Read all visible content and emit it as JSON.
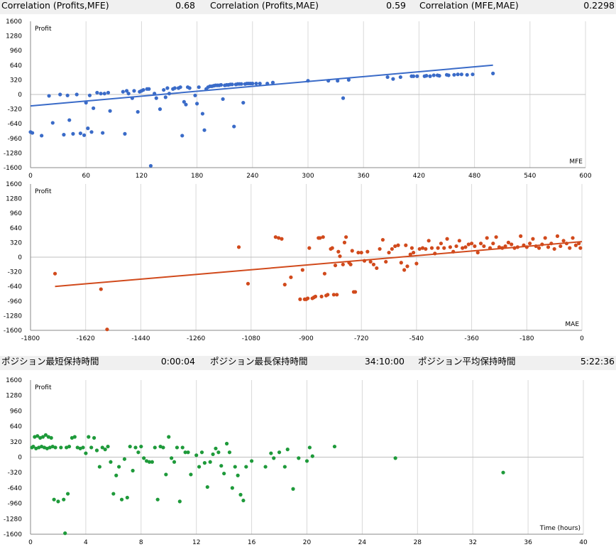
{
  "stats_top": [
    {
      "label": "Correlation (Profits,MFE)",
      "value": "0.68"
    },
    {
      "label": "Correlation (Profits,MAE)",
      "value": "0.59"
    },
    {
      "label": "Correlation (MFE,MAE)",
      "value": "0.2298"
    }
  ],
  "stats_mid": [
    {
      "label": "ポジション最短保持時間",
      "value": "0:00:04"
    },
    {
      "label": "ポジション最長保持時間",
      "value": "34:10:00"
    },
    {
      "label": "ポジション平均保持時間",
      "value": "5:22:36"
    }
  ],
  "colors": {
    "mfe": "#3a6bc8",
    "mae": "#d14a1c",
    "time": "#1e9a3a",
    "grid": "#d9d9d9",
    "bar": "#f0f0f0"
  },
  "chart_data": [
    {
      "type": "scatter",
      "ylabel": "Profit",
      "xlabel": "MFE",
      "xlim": [
        0,
        600
      ],
      "ylim": [
        -1600,
        1600
      ],
      "x_ticks": [
        0,
        60,
        120,
        180,
        240,
        300,
        360,
        420,
        480,
        540,
        600
      ],
      "y_ticks": [
        1600,
        1280,
        960,
        640,
        320,
        0,
        -320,
        -640,
        -960,
        -1280,
        -1600
      ],
      "trendline": [
        [
          0,
          -250
        ],
        [
          500,
          640
        ]
      ],
      "points": [
        [
          0,
          -820
        ],
        [
          2,
          -840
        ],
        [
          12,
          -900
        ],
        [
          20,
          -30
        ],
        [
          24,
          -620
        ],
        [
          32,
          0
        ],
        [
          36,
          -880
        ],
        [
          40,
          -20
        ],
        [
          42,
          -560
        ],
        [
          46,
          -860
        ],
        [
          50,
          0
        ],
        [
          54,
          -850
        ],
        [
          58,
          -890
        ],
        [
          60,
          -180
        ],
        [
          62,
          -740
        ],
        [
          64,
          -20
        ],
        [
          66,
          -820
        ],
        [
          68,
          -300
        ],
        [
          72,
          40
        ],
        [
          76,
          20
        ],
        [
          78,
          -840
        ],
        [
          80,
          20
        ],
        [
          84,
          40
        ],
        [
          86,
          -360
        ],
        [
          100,
          60
        ],
        [
          102,
          -860
        ],
        [
          104,
          80
        ],
        [
          106,
          20
        ],
        [
          110,
          -80
        ],
        [
          112,
          80
        ],
        [
          116,
          -380
        ],
        [
          118,
          60
        ],
        [
          120,
          80
        ],
        [
          122,
          100
        ],
        [
          126,
          120
        ],
        [
          128,
          120
        ],
        [
          130,
          -1560
        ],
        [
          134,
          20
        ],
        [
          136,
          -80
        ],
        [
          140,
          -320
        ],
        [
          144,
          100
        ],
        [
          146,
          -60
        ],
        [
          148,
          140
        ],
        [
          150,
          20
        ],
        [
          154,
          120
        ],
        [
          156,
          140
        ],
        [
          160,
          140
        ],
        [
          162,
          160
        ],
        [
          164,
          -900
        ],
        [
          166,
          -160
        ],
        [
          168,
          -220
        ],
        [
          170,
          160
        ],
        [
          172,
          140
        ],
        [
          178,
          -20
        ],
        [
          180,
          -200
        ],
        [
          182,
          160
        ],
        [
          186,
          -420
        ],
        [
          188,
          -780
        ],
        [
          190,
          120
        ],
        [
          192,
          160
        ],
        [
          194,
          180
        ],
        [
          196,
          180
        ],
        [
          198,
          190
        ],
        [
          200,
          200
        ],
        [
          202,
          200
        ],
        [
          204,
          200
        ],
        [
          206,
          210
        ],
        [
          208,
          -100
        ],
        [
          210,
          200
        ],
        [
          212,
          210
        ],
        [
          214,
          210
        ],
        [
          216,
          220
        ],
        [
          218,
          220
        ],
        [
          220,
          -700
        ],
        [
          222,
          220
        ],
        [
          224,
          230
        ],
        [
          226,
          230
        ],
        [
          228,
          230
        ],
        [
          230,
          -180
        ],
        [
          232,
          230
        ],
        [
          234,
          240
        ],
        [
          236,
          240
        ],
        [
          238,
          240
        ],
        [
          240,
          240
        ],
        [
          244,
          240
        ],
        [
          248,
          240
        ],
        [
          256,
          240
        ],
        [
          262,
          260
        ],
        [
          300,
          300
        ],
        [
          322,
          300
        ],
        [
          332,
          300
        ],
        [
          338,
          -80
        ],
        [
          344,
          320
        ],
        [
          386,
          380
        ],
        [
          392,
          340
        ],
        [
          400,
          380
        ],
        [
          412,
          400
        ],
        [
          414,
          400
        ],
        [
          418,
          400
        ],
        [
          426,
          400
        ],
        [
          428,
          410
        ],
        [
          432,
          400
        ],
        [
          436,
          420
        ],
        [
          440,
          420
        ],
        [
          442,
          410
        ],
        [
          450,
          430
        ],
        [
          452,
          420
        ],
        [
          458,
          430
        ],
        [
          462,
          440
        ],
        [
          466,
          440
        ],
        [
          472,
          430
        ],
        [
          478,
          440
        ],
        [
          500,
          460
        ]
      ]
    },
    {
      "type": "scatter",
      "ylabel": "Profit",
      "xlabel": "MAE",
      "xlim": [
        -1800,
        0
      ],
      "ylim": [
        -1600,
        1600
      ],
      "x_ticks": [
        -1800,
        -1620,
        -1440,
        -1260,
        -1080,
        -900,
        -720,
        -540,
        -360,
        -180,
        0
      ],
      "y_ticks": [
        1600,
        1280,
        960,
        640,
        320,
        0,
        -320,
        -640,
        -960,
        -1280,
        -1600
      ],
      "trendline": [
        [
          -1720,
          -640
        ],
        [
          0,
          340
        ]
      ],
      "points": [
        [
          -1720,
          -360
        ],
        [
          -1570,
          -700
        ],
        [
          -1550,
          -1580
        ],
        [
          -1120,
          220
        ],
        [
          -1090,
          -580
        ],
        [
          -1000,
          440
        ],
        [
          -990,
          420
        ],
        [
          -980,
          400
        ],
        [
          -970,
          -600
        ],
        [
          -950,
          -440
        ],
        [
          -920,
          -920
        ],
        [
          -912,
          -280
        ],
        [
          -905,
          -920
        ],
        [
          -900,
          -920
        ],
        [
          -895,
          -900
        ],
        [
          -890,
          200
        ],
        [
          -880,
          -900
        ],
        [
          -875,
          -880
        ],
        [
          -870,
          -860
        ],
        [
          -860,
          420
        ],
        [
          -855,
          420
        ],
        [
          -850,
          -860
        ],
        [
          -845,
          440
        ],
        [
          -840,
          -360
        ],
        [
          -835,
          -840
        ],
        [
          -830,
          -820
        ],
        [
          -820,
          180
        ],
        [
          -815,
          200
        ],
        [
          -810,
          -820
        ],
        [
          -805,
          -180
        ],
        [
          -800,
          -820
        ],
        [
          -795,
          120
        ],
        [
          -790,
          20
        ],
        [
          -780,
          -160
        ],
        [
          -775,
          320
        ],
        [
          -770,
          440
        ],
        [
          -760,
          -120
        ],
        [
          -755,
          -160
        ],
        [
          -750,
          140
        ],
        [
          -745,
          -760
        ],
        [
          -740,
          -760
        ],
        [
          -730,
          100
        ],
        [
          -720,
          100
        ],
        [
          -710,
          -80
        ],
        [
          -700,
          120
        ],
        [
          -690,
          -100
        ],
        [
          -680,
          -160
        ],
        [
          -670,
          -240
        ],
        [
          -660,
          180
        ],
        [
          -650,
          380
        ],
        [
          -640,
          -100
        ],
        [
          -630,
          100
        ],
        [
          -620,
          180
        ],
        [
          -610,
          240
        ],
        [
          -600,
          260
        ],
        [
          -590,
          -120
        ],
        [
          -580,
          -280
        ],
        [
          -575,
          260
        ],
        [
          -570,
          -200
        ],
        [
          -560,
          60
        ],
        [
          -555,
          200
        ],
        [
          -550,
          100
        ],
        [
          -540,
          -140
        ],
        [
          -530,
          180
        ],
        [
          -520,
          200
        ],
        [
          -510,
          180
        ],
        [
          -500,
          360
        ],
        [
          -490,
          200
        ],
        [
          -480,
          80
        ],
        [
          -470,
          200
        ],
        [
          -460,
          300
        ],
        [
          -450,
          200
        ],
        [
          -440,
          400
        ],
        [
          -430,
          220
        ],
        [
          -420,
          120
        ],
        [
          -410,
          240
        ],
        [
          -400,
          360
        ],
        [
          -390,
          200
        ],
        [
          -380,
          220
        ],
        [
          -370,
          280
        ],
        [
          -360,
          300
        ],
        [
          -350,
          240
        ],
        [
          -340,
          100
        ],
        [
          -330,
          300
        ],
        [
          -320,
          240
        ],
        [
          -310,
          420
        ],
        [
          -300,
          200
        ],
        [
          -290,
          300
        ],
        [
          -280,
          440
        ],
        [
          -270,
          220
        ],
        [
          -260,
          200
        ],
        [
          -250,
          240
        ],
        [
          -240,
          320
        ],
        [
          -230,
          280
        ],
        [
          -220,
          200
        ],
        [
          -210,
          220
        ],
        [
          -200,
          460
        ],
        [
          -190,
          260
        ],
        [
          -180,
          220
        ],
        [
          -170,
          300
        ],
        [
          -160,
          400
        ],
        [
          -150,
          240
        ],
        [
          -140,
          200
        ],
        [
          -130,
          280
        ],
        [
          -120,
          420
        ],
        [
          -110,
          220
        ],
        [
          -100,
          300
        ],
        [
          -90,
          180
        ],
        [
          -80,
          460
        ],
        [
          -70,
          240
        ],
        [
          -60,
          360
        ],
        [
          -50,
          300
        ],
        [
          -40,
          200
        ],
        [
          -30,
          420
        ],
        [
          -20,
          260
        ],
        [
          -10,
          300
        ],
        [
          -5,
          200
        ]
      ]
    },
    {
      "type": "scatter",
      "ylabel": "Profit",
      "xlabel": "Time (hours)",
      "xlim": [
        0,
        40
      ],
      "ylim": [
        -1600,
        1600
      ],
      "x_ticks": [
        0,
        4,
        8,
        12,
        16,
        20,
        24,
        28,
        32,
        36,
        40
      ],
      "y_ticks": [
        1600,
        1280,
        960,
        640,
        320,
        0,
        -320,
        -640,
        -960,
        -1280,
        -1600
      ],
      "points": [
        [
          0.1,
          200
        ],
        [
          0.2,
          220
        ],
        [
          0.3,
          420
        ],
        [
          0.4,
          180
        ],
        [
          0.5,
          440
        ],
        [
          0.6,
          200
        ],
        [
          0.7,
          400
        ],
        [
          0.8,
          220
        ],
        [
          0.9,
          420
        ],
        [
          1.0,
          200
        ],
        [
          1.1,
          460
        ],
        [
          1.2,
          180
        ],
        [
          1.3,
          420
        ],
        [
          1.4,
          200
        ],
        [
          1.5,
          400
        ],
        [
          1.6,
          220
        ],
        [
          1.7,
          -880
        ],
        [
          1.8,
          200
        ],
        [
          2.0,
          -920
        ],
        [
          2.2,
          200
        ],
        [
          2.4,
          -880
        ],
        [
          2.5,
          -1580
        ],
        [
          2.6,
          200
        ],
        [
          2.7,
          -760
        ],
        [
          2.8,
          220
        ],
        [
          3.0,
          400
        ],
        [
          3.2,
          420
        ],
        [
          3.4,
          200
        ],
        [
          3.6,
          180
        ],
        [
          3.8,
          200
        ],
        [
          4.0,
          80
        ],
        [
          4.2,
          420
        ],
        [
          4.4,
          200
        ],
        [
          4.6,
          400
        ],
        [
          4.8,
          140
        ],
        [
          5.0,
          -200
        ],
        [
          5.2,
          200
        ],
        [
          5.4,
          160
        ],
        [
          5.6,
          220
        ],
        [
          5.8,
          -100
        ],
        [
          6.0,
          -760
        ],
        [
          6.2,
          -380
        ],
        [
          6.4,
          -200
        ],
        [
          6.6,
          -880
        ],
        [
          6.8,
          -40
        ],
        [
          7.0,
          -840
        ],
        [
          7.2,
          220
        ],
        [
          7.4,
          -280
        ],
        [
          7.6,
          200
        ],
        [
          7.8,
          100
        ],
        [
          8.0,
          220
        ],
        [
          8.2,
          -20
        ],
        [
          8.4,
          -80
        ],
        [
          8.6,
          -100
        ],
        [
          8.8,
          -100
        ],
        [
          9.0,
          200
        ],
        [
          9.2,
          -880
        ],
        [
          9.4,
          220
        ],
        [
          9.6,
          200
        ],
        [
          9.8,
          -360
        ],
        [
          10.0,
          420
        ],
        [
          10.2,
          -20
        ],
        [
          10.4,
          -100
        ],
        [
          10.6,
          200
        ],
        [
          10.8,
          -920
        ],
        [
          11.0,
          200
        ],
        [
          11.2,
          100
        ],
        [
          11.4,
          100
        ],
        [
          11.6,
          -360
        ],
        [
          12.0,
          40
        ],
        [
          12.2,
          -200
        ],
        [
          12.4,
          100
        ],
        [
          12.6,
          -120
        ],
        [
          12.8,
          -620
        ],
        [
          13.0,
          -100
        ],
        [
          13.2,
          60
        ],
        [
          13.4,
          180
        ],
        [
          13.6,
          100
        ],
        [
          13.8,
          -180
        ],
        [
          14.0,
          -340
        ],
        [
          14.2,
          280
        ],
        [
          14.4,
          100
        ],
        [
          14.6,
          -640
        ],
        [
          14.8,
          -200
        ],
        [
          15.0,
          -380
        ],
        [
          15.2,
          -780
        ],
        [
          15.4,
          -900
        ],
        [
          15.6,
          -200
        ],
        [
          16.0,
          -80
        ],
        [
          17.0,
          -200
        ],
        [
          17.4,
          80
        ],
        [
          17.6,
          -20
        ],
        [
          18.0,
          100
        ],
        [
          18.4,
          -200
        ],
        [
          18.6,
          160
        ],
        [
          19.0,
          -660
        ],
        [
          19.4,
          -20
        ],
        [
          20.0,
          -80
        ],
        [
          20.2,
          200
        ],
        [
          20.4,
          20
        ],
        [
          22.0,
          220
        ],
        [
          26.4,
          -20
        ],
        [
          34.2,
          -320
        ]
      ]
    }
  ]
}
